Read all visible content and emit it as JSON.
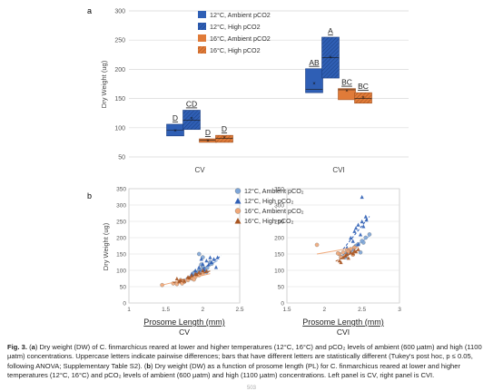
{
  "panel_a_label": "a",
  "panel_b_label": "b",
  "page_number": "503",
  "caption": {
    "fig": "Fig. 3.",
    "part1": " (",
    "a_marker": "a",
    "part2": ") Dry weight (DW) of C. finmarchicus reared at lower and higher temperatures (12°C, 16°C) and pCO₂ levels of ambient (600 μatm) and high (1100 μatm) concentrations. Uppercase letters indicate pairwise differences; bars that have different letters are statistically different (Tukey's post hoc, p ≤ 0.05, following ANOVA; Supplementary Table S2). (",
    "b_marker": "b",
    "part3": ") Dry weight (DW) as a function of prosome length (PL) for C. finmarchicus reared at lower and higher temperatures (12°C, 16°C) and pCO₂ levels of ambient (600 μatm) and high (1100 μatm) concentrations. Left panel is CV, right panel is CVI."
  },
  "colors": {
    "blue_dark": "#2f5fb5",
    "blue_light": "#7ea6d8",
    "orange_dark": "#e07b39",
    "orange_light": "#f0a878",
    "grid": "#d9d9d9",
    "axis": "#7f7f7f"
  },
  "chart_data": [
    {
      "type": "box",
      "panel": "a",
      "title": "",
      "ylabel": "Dry Weight (ug)",
      "xlabel": "",
      "ylim": [
        50,
        300
      ],
      "yticks": [
        50,
        100,
        150,
        200,
        250,
        300
      ],
      "grid": true,
      "legend_position": "top-left",
      "categories": [
        "CV",
        "CVI"
      ],
      "series": [
        {
          "name": "12°C, Ambient pCO2",
          "color": "#2f5fb5",
          "hatch": "none",
          "boxes": [
            {
              "category": "CV",
              "q1": 86,
              "median": 96,
              "q3": 106,
              "mean": 95,
              "letter": "D"
            },
            {
              "category": "CVI",
              "q1": 160,
              "median": 166,
              "q3": 201,
              "mean": 176,
              "letter": "AB"
            }
          ]
        },
        {
          "name": "12°C, High pCO2",
          "color": "#2f5fb5",
          "hatch": "diagonal",
          "boxes": [
            {
              "category": "CV",
              "q1": 97,
              "median": 113,
              "q3": 130,
              "mean": 116,
              "letter": "CD"
            },
            {
              "category": "CVI",
              "q1": 185,
              "median": 220,
              "q3": 255,
              "mean": 221,
              "letter": "A"
            }
          ]
        },
        {
          "name": "16°C, Ambient pCO2",
          "color": "#e07b39",
          "hatch": "none",
          "boxes": [
            {
              "category": "CV",
              "q1": 75,
              "median": 79,
              "q3": 81,
              "mean": 78,
              "letter": "D"
            },
            {
              "category": "CVI",
              "q1": 148,
              "median": 165,
              "q3": 167,
              "mean": 163,
              "letter": "BC"
            }
          ]
        },
        {
          "name": "16°C, High pCO2",
          "color": "#e07b39",
          "hatch": "diagonal",
          "boxes": [
            {
              "category": "CV",
              "q1": 75,
              "median": 82,
              "q3": 87,
              "mean": 83,
              "letter": "D"
            },
            {
              "category": "CVI",
              "q1": 142,
              "median": 150,
              "q3": 160,
              "mean": 152,
              "letter": "BC"
            }
          ]
        }
      ]
    },
    {
      "type": "scatter",
      "panel": "b",
      "title": "",
      "ylabel": "Dry Weight (ug)",
      "ylim": [
        0,
        350
      ],
      "yticks": [
        0,
        50,
        100,
        150,
        200,
        250,
        300,
        350
      ],
      "grid": true,
      "legend_position": "top-right",
      "legend": [
        {
          "label": "12°C, Ambient pCO₂",
          "marker": "circle",
          "color": "#7ea6d8"
        },
        {
          "label": "12°C, High pCO₂",
          "marker": "triangle",
          "color": "#2f5fb5"
        },
        {
          "label": "16°C, Ambient pCO₂",
          "marker": "circle",
          "color": "#f0a878"
        },
        {
          "label": "16°C, High pCO₂",
          "marker": "triangle",
          "color": "#a85420"
        }
      ],
      "subplots": [
        {
          "name": "CV",
          "xlabel": "Prosome Length (mm)",
          "xlim": [
            1,
            2.5
          ],
          "xticks": [
            1,
            1.5,
            2,
            2.5
          ],
          "series": [
            {
              "name": "12°C, Ambient pCO₂",
              "marker": "circle",
              "color": "#7ea6d8",
              "points": [
                [
                  1.85,
                  80
                ],
                [
                  1.9,
                  95
                ],
                [
                  1.95,
                  100
                ],
                [
                  2.0,
                  110
                ],
                [
                  2.05,
                  95
                ],
                [
                  1.92,
                  88
                ],
                [
                  1.98,
                  118
                ],
                [
                  2.02,
                  105
                ],
                [
                  1.88,
                  92
                ],
                [
                  2.1,
                  125
                ],
                [
                  1.95,
                  150
                ],
                [
                  2.0,
                  140
                ],
                [
                  1.8,
                  75
                ],
                [
                  2.06,
                  108
                ],
                [
                  2.12,
                  120
                ],
                [
                  1.97,
                  99
                ]
              ],
              "trend": [
                [
                  1.75,
                  72
                ],
                [
                  2.2,
                  130
                ]
              ]
            },
            {
              "name": "12°C, High pCO₂",
              "marker": "triangle",
              "color": "#2f5fb5",
              "points": [
                [
                  1.9,
                  100
                ],
                [
                  2.0,
                  120
                ],
                [
                  2.05,
                  130
                ],
                [
                  2.1,
                  140
                ],
                [
                  2.15,
                  135
                ],
                [
                  2.2,
                  140
                ],
                [
                  1.95,
                  110
                ],
                [
                  2.0,
                  95
                ],
                [
                  2.08,
                  118
                ],
                [
                  1.85,
                  90
                ],
                [
                  2.12,
                  125
                ],
                [
                  2.02,
                  102
                ],
                [
                  1.98,
                  135
                ],
                [
                  2.18,
                  110
                ]
              ],
              "trend": [
                [
                  1.85,
                  80
                ],
                [
                  2.25,
                  145
                ]
              ]
            },
            {
              "name": "16°C, Ambient pCO₂",
              "marker": "circle",
              "color": "#f0a878",
              "points": [
                [
                  1.45,
                  55
                ],
                [
                  1.6,
                  60
                ],
                [
                  1.7,
                  70
                ],
                [
                  1.75,
                  65
                ],
                [
                  1.8,
                  70
                ],
                [
                  1.85,
                  75
                ],
                [
                  1.9,
                  80
                ],
                [
                  1.95,
                  85
                ],
                [
                  2.0,
                  90
                ],
                [
                  1.72,
                  60
                ],
                [
                  1.65,
                  58
                ],
                [
                  1.88,
                  72
                ]
              ],
              "trend": [
                [
                  1.45,
                  55
                ],
                [
                  2.1,
                  90
                ]
              ]
            },
            {
              "name": "16°C, High pCO₂",
              "marker": "triangle",
              "color": "#a85420",
              "points": [
                [
                  1.65,
                  75
                ],
                [
                  1.7,
                  70
                ],
                [
                  1.8,
                  80
                ],
                [
                  1.85,
                  85
                ],
                [
                  1.9,
                  90
                ],
                [
                  1.95,
                  95
                ],
                [
                  2.0,
                  100
                ],
                [
                  1.75,
                  68
                ],
                [
                  1.82,
                  78
                ],
                [
                  1.92,
                  88
                ],
                [
                  1.68,
                  66
                ],
                [
                  2.05,
                  98
                ]
              ],
              "trend": [
                [
                  1.6,
                  62
                ],
                [
                  2.1,
                  98
                ]
              ]
            }
          ]
        },
        {
          "name": "CVI",
          "xlabel": "Prosome Length (mm)",
          "xlim": [
            1.5,
            3
          ],
          "xticks": [
            1.5,
            2,
            2.5,
            3
          ],
          "series": [
            {
              "name": "12°C, Ambient pCO₂",
              "marker": "circle",
              "color": "#7ea6d8",
              "points": [
                [
                  2.3,
                  150
                ],
                [
                  2.35,
                  160
                ],
                [
                  2.4,
                  170
                ],
                [
                  2.45,
                  180
                ],
                [
                  2.5,
                  190
                ],
                [
                  2.55,
                  200
                ],
                [
                  2.6,
                  210
                ],
                [
                  2.38,
                  165
                ],
                [
                  2.42,
                  175
                ],
                [
                  2.48,
                  155
                ],
                [
                  2.52,
                  185
                ],
                [
                  2.28,
                  140
                ]
              ],
              "trend": [
                [
                  2.2,
                  140
                ],
                [
                  2.6,
                  205
                ]
              ]
            },
            {
              "name": "12°C, High pCO₂",
              "marker": "triangle",
              "color": "#2f5fb5",
              "points": [
                [
                  2.3,
                  170
                ],
                [
                  2.35,
                  200
                ],
                [
                  2.4,
                  220
                ],
                [
                  2.45,
                  240
                ],
                [
                  2.5,
                  250
                ],
                [
                  2.55,
                  265
                ],
                [
                  2.5,
                  325
                ],
                [
                  2.42,
                  230
                ],
                [
                  2.38,
                  190
                ],
                [
                  2.48,
                  210
                ],
                [
                  2.52,
                  235
                ],
                [
                  2.45,
                  180
                ],
                [
                  2.33,
                  160
                ],
                [
                  2.56,
                  255
                ]
              ],
              "trend": [
                [
                  2.25,
                  165
                ],
                [
                  2.6,
                  265
                ]
              ]
            },
            {
              "name": "16°C, Ambient pCO₂",
              "marker": "circle",
              "color": "#f0a878",
              "points": [
                [
                  1.9,
                  178
                ],
                [
                  2.2,
                  150
                ],
                [
                  2.25,
                  155
                ],
                [
                  2.3,
                  160
                ],
                [
                  2.35,
                  165
                ],
                [
                  2.4,
                  170
                ],
                [
                  2.28,
                  145
                ],
                [
                  2.32,
                  158
                ],
                [
                  2.38,
                  148
                ],
                [
                  2.22,
                  140
                ],
                [
                  2.18,
                  152
                ]
              ],
              "trend": [
                [
                  1.9,
                  150
                ],
                [
                  2.45,
                  172
                ]
              ]
            },
            {
              "name": "16°C, High pCO₂",
              "marker": "triangle",
              "color": "#a85420",
              "points": [
                [
                  2.2,
                  130
                ],
                [
                  2.25,
                  140
                ],
                [
                  2.3,
                  150
                ],
                [
                  2.35,
                  155
                ],
                [
                  2.4,
                  160
                ],
                [
                  2.45,
                  165
                ],
                [
                  2.28,
                  145
                ],
                [
                  2.32,
                  138
                ],
                [
                  2.38,
                  152
                ],
                [
                  2.22,
                  125
                ],
                [
                  2.42,
                  158
                ]
              ],
              "trend": [
                [
                  2.15,
                  128
                ],
                [
                  2.45,
                  162
                ]
              ]
            }
          ]
        }
      ]
    }
  ]
}
